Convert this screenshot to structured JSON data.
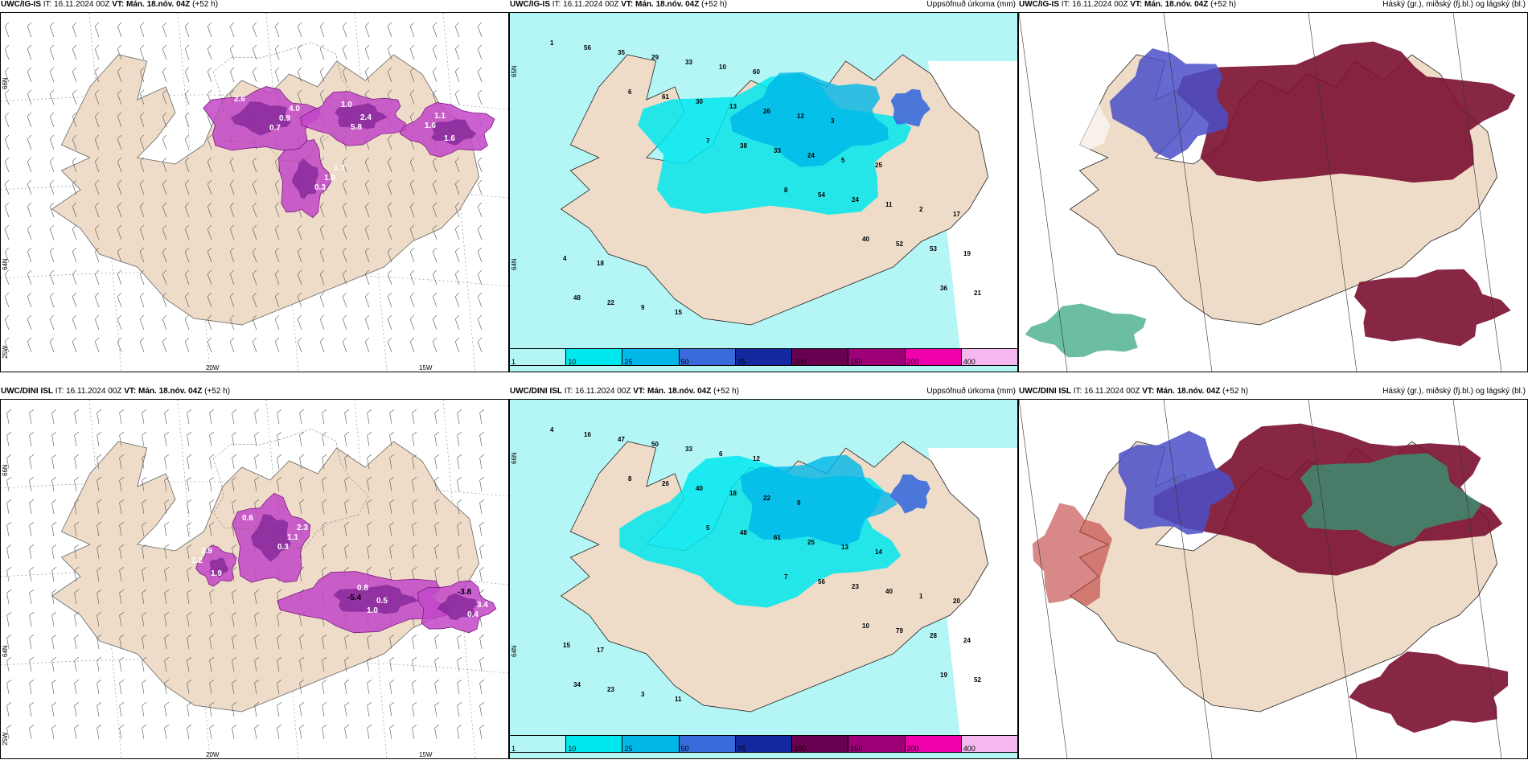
{
  "panels": [
    {
      "model": "UWC/IG-IS",
      "it_label": "IT:",
      "it_value": "16.11.2024 00Z",
      "vt_label": "VT:",
      "vt_value": "Mán. 18.nóv. 04Z",
      "lead": "(+52 h)",
      "right_title": "",
      "lon_labels": [
        "20W",
        "15W"
      ],
      "lat_labels": [
        "66N",
        "64N",
        "25W"
      ],
      "values": [
        "2.6",
        "2.4",
        "1.7",
        "1.6",
        "4.0",
        "5.8",
        "1.9",
        "1.1",
        "0.9",
        "1.0",
        "0.3",
        "1.6",
        "0.7"
      ]
    },
    {
      "model": "UWC/IG-IS",
      "it_label": "IT:",
      "it_value": "16.11.2024 00Z",
      "vt_label": "VT:",
      "vt_value": "Mán. 18.nóv. 04Z",
      "lead": "(+52 h)",
      "right_title": "Uppsöfnuð úrkoma (mm)",
      "lat_labels": [
        "65N",
        "64N"
      ],
      "values": [
        "1",
        "6",
        "7",
        "8",
        "40",
        "36",
        "56",
        "61",
        "38",
        "54",
        "52",
        "21",
        "35",
        "30",
        "33",
        "24",
        "53",
        "48",
        "29",
        "13",
        "24",
        "11",
        "19",
        "22",
        "33",
        "26",
        "5",
        "2",
        "4",
        "9",
        "10",
        "12",
        "25",
        "17",
        "18",
        "15",
        "60",
        "3"
      ]
    },
    {
      "model": "UWC/IG-IS",
      "it_label": "IT:",
      "it_value": "16.11.2024 00Z",
      "vt_label": "VT:",
      "vt_value": "Mán. 18.nóv. 04Z",
      "lead": "(+52 h)",
      "right_title": "Háský (gr.), miðský (fj.bl.) og lágský (bl.)"
    },
    {
      "model": "UWC/DINI ISL",
      "it_label": "IT:",
      "it_value": "16.11.2024 00Z",
      "vt_label": "VT:",
      "vt_value": "Mán. 18.nóv. 04Z",
      "lead": "(+52 h)",
      "right_title": "",
      "lon_labels": [
        "20W",
        "15W"
      ],
      "lat_labels": [
        "66N",
        "64N",
        "25W"
      ],
      "values": [
        "0.6",
        "0.5",
        "1.6",
        "1.9",
        "2.3",
        "1.0",
        "3.4",
        "2.9",
        "1.1",
        "0.8",
        "0.4",
        "1.2",
        "0.3",
        "-5.4",
        "-3.8"
      ]
    },
    {
      "model": "UWC/DINI ISL",
      "it_label": "IT:",
      "it_value": "16.11.2024 00Z",
      "vt_label": "VT:",
      "vt_value": "Mán. 18.nóv. 04Z",
      "lead": "(+52 h)",
      "right_title": "Uppsöfnuð úrkoma (mm)",
      "lat_labels": [
        "66N",
        "64N"
      ],
      "values": [
        "4",
        "8",
        "5",
        "7",
        "10",
        "19",
        "16",
        "26",
        "48",
        "56",
        "79",
        "52",
        "47",
        "40",
        "61",
        "23",
        "28",
        "34",
        "50",
        "18",
        "25",
        "40",
        "24",
        "23",
        "33",
        "22",
        "13",
        "1",
        "15",
        "3",
        "6",
        "9",
        "14",
        "20",
        "17",
        "11",
        "12"
      ]
    },
    {
      "model": "UWC/DINI ISL",
      "it_label": "IT:",
      "it_value": "16.11.2024 00Z",
      "vt_label": "VT:",
      "vt_value": "Mán. 18.nóv. 04Z",
      "lead": "(+52 h)",
      "right_title": "Háský (gr.), miðský (fj.bl.) og lágský (bl.)"
    }
  ],
  "colorbar": {
    "ticks": [
      "1",
      "10",
      "25",
      "50",
      "75",
      "100",
      "150",
      "200",
      "400"
    ],
    "colors": [
      "#b4f5f5",
      "#00e8ee",
      "#00b7e8",
      "#3a6bdc",
      "#1428a0",
      "#6a0050",
      "#9e0078",
      "#ee00aa",
      "#f4b8ee"
    ]
  },
  "colors": {
    "land": "#eedcc8",
    "snow": "#c247c8",
    "precip_light": "#b4f5f5",
    "precip_mid": "#00e8ee",
    "high_cloud": "#2ea37a",
    "mid_cloud": "#4a4fc8",
    "low_cloud": "#7a1030"
  }
}
